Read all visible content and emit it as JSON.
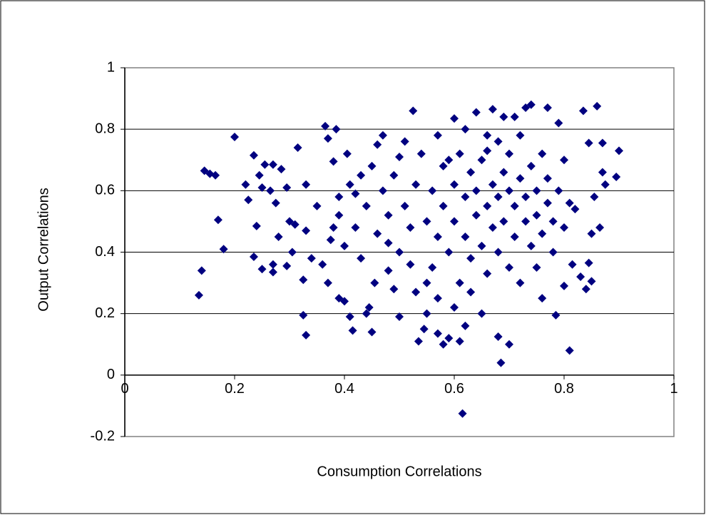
{
  "chart_data": {
    "type": "scatter",
    "x_label": "Consumption Correlations",
    "y_label": "Output Correlations",
    "color": "#000080",
    "xlim": [
      0,
      1
    ],
    "xticks": [
      0,
      0.2,
      0.4,
      0.6,
      0.8,
      1
    ],
    "ylim": [
      -0.2,
      1
    ],
    "yticks": [
      -0.2,
      0,
      0.2,
      0.4,
      0.6,
      0.8,
      1
    ],
    "grid": true,
    "x": [
      0.135,
      0.14,
      0.145,
      0.155,
      0.165,
      0.17,
      0.18,
      0.2,
      0.22,
      0.225,
      0.235,
      0.235,
      0.24,
      0.245,
      0.25,
      0.25,
      0.255,
      0.265,
      0.27,
      0.27,
      0.27,
      0.275,
      0.28,
      0.285,
      0.295,
      0.295,
      0.3,
      0.305,
      0.31,
      0.315,
      0.325,
      0.33,
      0.325,
      0.33,
      0.33,
      0.34,
      0.35,
      0.36,
      0.365,
      0.37,
      0.37,
      0.375,
      0.38,
      0.385,
      0.39,
      0.39,
      0.4,
      0.41,
      0.415,
      0.405,
      0.42,
      0.43,
      0.44,
      0.445,
      0.45,
      0.455,
      0.46,
      0.47,
      0.48,
      0.49,
      0.5,
      0.5,
      0.51,
      0.525,
      0.53,
      0.535,
      0.545,
      0.55,
      0.56,
      0.57,
      0.58,
      0.59,
      0.6,
      0.61,
      0.615,
      0.62,
      0.64,
      0.66,
      0.67,
      0.68,
      0.685,
      0.69,
      0.7,
      0.71,
      0.73,
      0.74,
      0.76,
      0.77,
      0.785,
      0.79,
      0.8,
      0.81,
      0.815,
      0.82,
      0.83,
      0.835,
      0.84,
      0.845,
      0.845,
      0.85,
      0.855,
      0.86,
      0.865,
      0.87,
      0.87,
      0.875,
      0.895,
      0.9,
      0.85,
      0.55,
      0.56,
      0.57,
      0.58,
      0.58,
      0.59,
      0.6,
      0.6,
      0.61,
      0.61,
      0.62,
      0.62,
      0.63,
      0.63,
      0.64,
      0.64,
      0.65,
      0.65,
      0.66,
      0.66,
      0.67,
      0.67,
      0.68,
      0.68,
      0.68,
      0.69,
      0.69,
      0.7,
      0.7,
      0.7,
      0.71,
      0.71,
      0.72,
      0.72,
      0.73,
      0.73,
      0.74,
      0.74,
      0.75,
      0.75,
      0.76,
      0.76,
      0.77,
      0.77,
      0.78,
      0.78,
      0.79,
      0.8,
      0.8,
      0.81,
      0.53,
      0.52,
      0.51,
      0.5,
      0.49,
      0.48,
      0.47,
      0.46,
      0.45,
      0.44,
      0.43,
      0.42,
      0.41,
      0.4,
      0.39,
      0.38,
      0.54,
      0.55,
      0.57,
      0.6,
      0.63,
      0.65,
      0.72,
      0.75,
      0.57,
      0.62,
      0.66,
      0.48,
      0.52,
      0.59
    ],
    "values": [
      0.26,
      0.34,
      0.665,
      0.655,
      0.65,
      0.505,
      0.41,
      0.775,
      0.62,
      0.57,
      0.715,
      0.385,
      0.485,
      0.65,
      0.345,
      0.61,
      0.685,
      0.6,
      0.335,
      0.36,
      0.685,
      0.56,
      0.45,
      0.67,
      0.61,
      0.355,
      0.5,
      0.4,
      0.49,
      0.74,
      0.195,
      0.13,
      0.31,
      0.62,
      0.47,
      0.38,
      0.55,
      0.36,
      0.81,
      0.77,
      0.3,
      0.44,
      0.695,
      0.8,
      0.52,
      0.25,
      0.24,
      0.19,
      0.145,
      0.72,
      0.59,
      0.65,
      0.2,
      0.22,
      0.14,
      0.3,
      0.75,
      0.78,
      0.43,
      0.28,
      0.19,
      0.71,
      0.76,
      0.86,
      0.27,
      0.11,
      0.15,
      0.2,
      0.35,
      0.135,
      0.1,
      0.12,
      0.835,
      0.11,
      -0.125,
      0.16,
      0.855,
      0.73,
      0.865,
      0.125,
      0.04,
      0.84,
      0.1,
      0.84,
      0.87,
      0.88,
      0.25,
      0.87,
      0.195,
      0.82,
      0.29,
      0.08,
      0.36,
      0.54,
      0.32,
      0.86,
      0.28,
      0.755,
      0.365,
      0.46,
      0.58,
      0.875,
      0.48,
      0.755,
      0.66,
      0.62,
      0.645,
      0.73,
      0.305,
      0.5,
      0.6,
      0.45,
      0.55,
      0.68,
      0.4,
      0.62,
      0.5,
      0.3,
      0.72,
      0.58,
      0.45,
      0.66,
      0.38,
      0.52,
      0.6,
      0.7,
      0.42,
      0.55,
      0.33,
      0.62,
      0.48,
      0.76,
      0.58,
      0.4,
      0.66,
      0.5,
      0.6,
      0.72,
      0.35,
      0.55,
      0.45,
      0.64,
      0.78,
      0.58,
      0.5,
      0.68,
      0.42,
      0.6,
      0.52,
      0.72,
      0.46,
      0.56,
      0.64,
      0.5,
      0.4,
      0.6,
      0.7,
      0.48,
      0.56,
      0.62,
      0.48,
      0.55,
      0.4,
      0.65,
      0.52,
      0.6,
      0.46,
      0.68,
      0.55,
      0.38,
      0.48,
      0.62,
      0.42,
      0.58,
      0.48,
      0.72,
      0.3,
      0.25,
      0.22,
      0.27,
      0.2,
      0.3,
      0.35,
      0.78,
      0.8,
      0.78,
      0.34,
      0.36,
      0.7
    ]
  }
}
